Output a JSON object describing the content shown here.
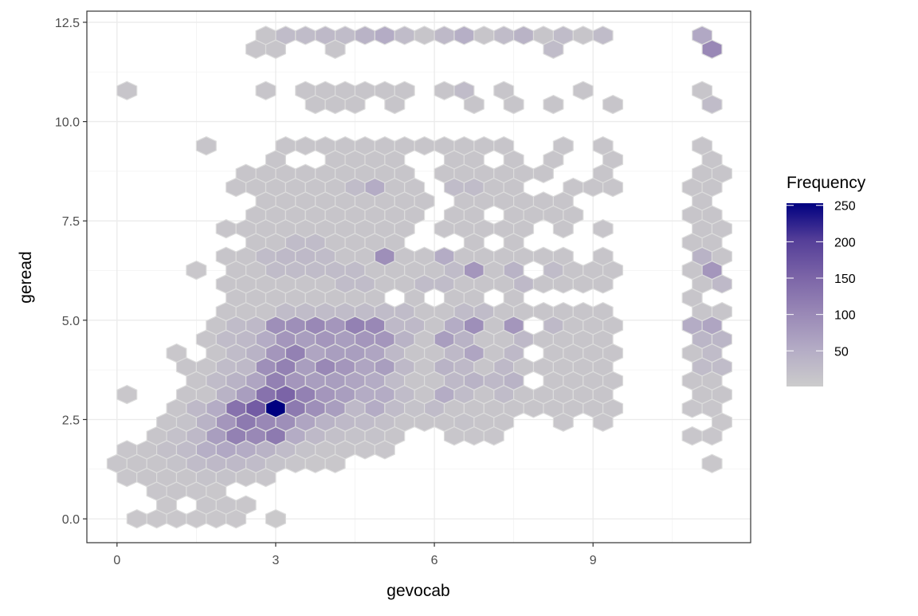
{
  "chart_data": {
    "type": "hexbin",
    "xlabel": "gevocab",
    "ylabel": "geread",
    "xlim": [
      -0.57,
      11.98
    ],
    "ylim": [
      -0.6,
      12.78
    ],
    "x_ticks": [
      0,
      3,
      6,
      9
    ],
    "x_tick_labels": [
      "0",
      "3",
      "6",
      "9"
    ],
    "y_ticks": [
      0,
      2.5,
      5,
      7.5,
      10,
      12.5
    ],
    "y_tick_labels": [
      "0.0",
      "2.5",
      "5.0",
      "7.5",
      "10.0",
      "12.5"
    ],
    "grid": true,
    "theme": "bw",
    "x_step": 0.375,
    "legend": {
      "title": "Frequency",
      "position": "right",
      "range": [
        1,
        253
      ],
      "ticks": [
        50,
        100,
        150,
        200,
        250
      ],
      "tick_labels": [
        "50",
        "100",
        "150",
        "200",
        "250"
      ],
      "low_color": "#cccccc",
      "high_color": "#000080"
    },
    "bins": [
      {
        "y": 0.0,
        "x0": 0.375,
        "counts": [
          8,
          8,
          8,
          8,
          8,
          8,
          null,
          6
        ]
      },
      {
        "y": 0.348,
        "x0": 0.9375,
        "counts": [
          8,
          null,
          10,
          10,
          8
        ]
      },
      {
        "y": 0.695,
        "x0": 0.75,
        "counts": [
          10,
          12,
          10,
          8
        ]
      },
      {
        "y": 1.043,
        "x0": 0.1875,
        "counts": [
          10,
          12,
          12,
          12,
          15,
          15,
          12,
          10
        ]
      },
      {
        "y": 1.391,
        "x0": 0.0,
        "counts": [
          10,
          12,
          12,
          15,
          25,
          30,
          30,
          25,
          15,
          10,
          8,
          8,
          null,
          null,
          null,
          null,
          null,
          null,
          null,
          null,
          null,
          null,
          null,
          null,
          null,
          null,
          null,
          null,
          null,
          null,
          8
        ]
      },
      {
        "y": 1.739,
        "x0": 0.1875,
        "counts": [
          10,
          12,
          20,
          25,
          45,
          55,
          50,
          40,
          25,
          15,
          12,
          12,
          10,
          10
        ]
      },
      {
        "y": 2.086,
        "x0": 0.75,
        "counts": [
          12,
          18,
          30,
          70,
          110,
          100,
          120,
          50,
          30,
          20,
          15,
          15,
          12,
          null,
          null,
          10,
          10,
          10,
          null,
          null,
          null,
          null,
          null,
          null,
          null,
          null,
          null,
          10,
          10
        ]
      },
      {
        "y": 2.434,
        "x0": 0.9375,
        "counts": [
          12,
          15,
          40,
          80,
          120,
          100,
          90,
          60,
          40,
          30,
          25,
          20,
          12,
          12,
          12,
          15,
          12,
          12,
          null,
          null,
          10,
          null,
          10,
          null,
          null,
          null,
          null,
          null,
          8
        ]
      },
      {
        "y": 2.782,
        "x0": 1.125,
        "counts": [
          12,
          30,
          50,
          130,
          160,
          253,
          120,
          90,
          70,
          30,
          50,
          25,
          15,
          25,
          12,
          12,
          12,
          12,
          12,
          12,
          12,
          12,
          12,
          null,
          null,
          null,
          10,
          10
        ]
      },
      {
        "y": 3.129,
        "x0": 0.1875,
        "counts": [
          8,
          null,
          null,
          12,
          12,
          40,
          70,
          130,
          150,
          110,
          80,
          70,
          50,
          50,
          25,
          12,
          50,
          25,
          12,
          25,
          12,
          12,
          12,
          12,
          12,
          null,
          null,
          null,
          null,
          12,
          12
        ]
      },
      {
        "y": 3.477,
        "x0": 1.5,
        "counts": [
          12,
          25,
          40,
          60,
          110,
          80,
          70,
          70,
          60,
          50,
          25,
          12,
          12,
          30,
          40,
          30,
          40,
          null,
          12,
          12,
          12,
          12,
          null,
          null,
          null,
          12,
          12
        ]
      },
      {
        "y": 3.825,
        "x0": 1.3125,
        "counts": [
          12,
          12,
          25,
          30,
          90,
          110,
          70,
          100,
          80,
          60,
          70,
          30,
          12,
          40,
          30,
          12,
          30,
          12,
          12,
          12,
          12,
          12,
          null,
          null,
          null,
          null,
          25,
          25
        ]
      },
      {
        "y": 4.172,
        "x0": 1.125,
        "counts": [
          8,
          null,
          12,
          25,
          40,
          80,
          110,
          60,
          70,
          70,
          60,
          30,
          12,
          12,
          30,
          60,
          12,
          30,
          null,
          12,
          12,
          12,
          12,
          null,
          null,
          null,
          12,
          25
        ]
      },
      {
        "y": 4.52,
        "x0": 1.6875,
        "counts": [
          12,
          25,
          30,
          50,
          80,
          70,
          80,
          70,
          80,
          80,
          40,
          12,
          70,
          40,
          12,
          12,
          30,
          12,
          12,
          12,
          12,
          null,
          null,
          null,
          null,
          35,
          35
        ]
      },
      {
        "y": 4.868,
        "x0": 1.875,
        "counts": [
          12,
          25,
          30,
          90,
          90,
          100,
          80,
          110,
          100,
          30,
          30,
          12,
          50,
          90,
          12,
          80,
          null,
          30,
          12,
          12,
          12,
          null,
          null,
          null,
          50,
          60
        ]
      },
      {
        "y": 5.215,
        "x0": 2.0625,
        "counts": [
          12,
          12,
          12,
          25,
          25,
          25,
          25,
          25,
          25,
          25,
          12,
          12,
          25,
          25,
          12,
          12,
          12,
          12,
          12,
          12,
          null,
          null,
          null,
          null,
          12,
          12
        ]
      },
      {
        "y": 5.563,
        "x0": 2.25,
        "counts": [
          12,
          12,
          12,
          12,
          12,
          12,
          12,
          12,
          null,
          12,
          null,
          12,
          12,
          null,
          12,
          null,
          null,
          null,
          null,
          null,
          null,
          null,
          null,
          12
        ]
      },
      {
        "y": 5.911,
        "x0": 2.0625,
        "counts": [
          12,
          12,
          12,
          12,
          12,
          12,
          25,
          25,
          12,
          12,
          25,
          25,
          12,
          12,
          12,
          30,
          12,
          12,
          12,
          12,
          null,
          null,
          null,
          null,
          12,
          30
        ]
      },
      {
        "y": 6.259,
        "x0": 1.5,
        "counts": [
          8,
          null,
          12,
          12,
          25,
          25,
          25,
          25,
          25,
          12,
          12,
          12,
          12,
          25,
          80,
          12,
          40,
          null,
          25,
          12,
          12,
          12,
          null,
          null,
          null,
          12,
          80
        ]
      },
      {
        "y": 6.606,
        "x0": 2.0625,
        "counts": [
          12,
          12,
          25,
          30,
          30,
          25,
          12,
          12,
          90,
          12,
          12,
          50,
          12,
          12,
          12,
          12,
          12,
          12,
          null,
          12,
          null,
          null,
          null,
          null,
          40,
          12
        ]
      },
      {
        "y": 6.954,
        "x0": 2.625,
        "counts": [
          12,
          12,
          25,
          25,
          12,
          12,
          12,
          12,
          null,
          null,
          null,
          12,
          null,
          12,
          null,
          null,
          null,
          null,
          null,
          null,
          null,
          null,
          12,
          12
        ]
      },
      {
        "y": 7.302,
        "x0": 2.0625,
        "counts": [
          12,
          12,
          12,
          12,
          12,
          12,
          12,
          12,
          12,
          12,
          null,
          12,
          12,
          12,
          12,
          12,
          null,
          12,
          null,
          12,
          null,
          null,
          null,
          null,
          12,
          12
        ]
      },
      {
        "y": 7.649,
        "x0": 2.625,
        "counts": [
          12,
          12,
          12,
          12,
          12,
          12,
          12,
          12,
          12,
          null,
          12,
          12,
          null,
          12,
          12,
          12,
          12,
          null,
          null,
          null,
          null,
          null,
          12,
          12
        ]
      },
      {
        "y": 7.997,
        "x0": 2.8125,
        "counts": [
          12,
          12,
          12,
          12,
          12,
          12,
          12,
          12,
          12,
          null,
          12,
          12,
          12,
          12,
          12,
          12,
          null,
          null,
          null,
          null,
          null,
          null,
          12
        ]
      },
      {
        "y": 8.345,
        "x0": 2.25,
        "counts": [
          12,
          12,
          12,
          12,
          12,
          12,
          25,
          50,
          12,
          12,
          null,
          25,
          25,
          12,
          12,
          null,
          null,
          12,
          12,
          12,
          null,
          null,
          null,
          12,
          12
        ]
      },
      {
        "y": 8.692,
        "x0": 2.4375,
        "counts": [
          12,
          12,
          12,
          12,
          12,
          12,
          12,
          12,
          12,
          null,
          12,
          12,
          12,
          12,
          12,
          12,
          null,
          null,
          12,
          null,
          null,
          null,
          null,
          12,
          12
        ]
      },
      {
        "y": 9.04,
        "x0": 3.0,
        "counts": [
          12,
          null,
          null,
          12,
          12,
          12,
          12,
          null,
          null,
          12,
          12,
          null,
          12,
          null,
          12,
          null,
          null,
          12,
          null,
          null,
          null,
          null,
          12
        ]
      },
      {
        "y": 9.388,
        "x0": 1.6875,
        "counts": [
          12,
          null,
          null,
          null,
          12,
          12,
          12,
          12,
          12,
          12,
          12,
          12,
          12,
          12,
          12,
          12,
          null,
          null,
          12,
          null,
          12,
          null,
          null,
          null,
          null,
          12
        ]
      },
      {
        "y": 10.431,
        "x0": 3.75,
        "counts": [
          12,
          12,
          12,
          null,
          12,
          null,
          null,
          null,
          12,
          null,
          12,
          null,
          12,
          null,
          null,
          12,
          null,
          null,
          null,
          null,
          25
        ]
      },
      {
        "y": 10.779,
        "x0": 0.1875,
        "counts": [
          12,
          null,
          null,
          null,
          null,
          null,
          null,
          12,
          null,
          12,
          12,
          12,
          12,
          12,
          12,
          null,
          12,
          25,
          null,
          12,
          null,
          null,
          null,
          12,
          null,
          null,
          null,
          null,
          null,
          12
        ]
      },
      {
        "y": 11.822,
        "x0": 2.625,
        "counts": [
          12,
          12,
          null,
          null,
          12,
          null,
          null,
          null,
          null,
          null,
          null,
          null,
          null,
          null,
          null,
          25,
          null,
          null,
          null,
          null,
          null,
          null,
          null,
          100
        ]
      },
      {
        "y": 12.17,
        "x0": 2.8125,
        "counts": [
          12,
          25,
          25,
          30,
          25,
          40,
          50,
          25,
          12,
          30,
          45,
          12,
          25,
          40,
          12,
          25,
          12,
          25,
          null,
          null,
          null,
          null,
          55
        ]
      }
    ]
  }
}
